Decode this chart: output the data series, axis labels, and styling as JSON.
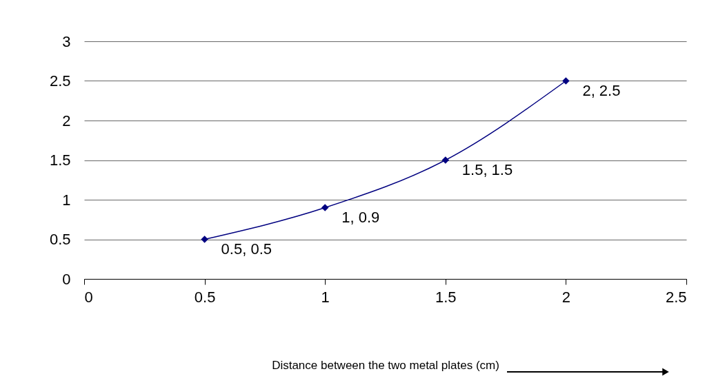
{
  "chart_data": {
    "type": "line",
    "xlabel": "Distance between the two metal plates (cm)",
    "x": [
      0.5,
      1,
      1.5,
      2
    ],
    "series": [
      {
        "color": "#000080",
        "values": [
          0.5,
          0.9,
          1.5,
          2.5
        ],
        "value_labels": [
          "0.5, 0.5",
          "1, 0.9",
          "1.5, 1.5",
          "2, 2.5"
        ]
      }
    ],
    "xlim": [
      0,
      2.5
    ],
    "xticks": [
      0,
      0.5,
      1,
      1.5,
      2,
      2.5
    ],
    "ylim": [
      0,
      3
    ],
    "yticks": [
      0,
      0.5,
      1,
      1.5,
      2,
      2.5,
      3
    ],
    "grid": "y",
    "marker": "diamond",
    "line_style": "solid"
  }
}
